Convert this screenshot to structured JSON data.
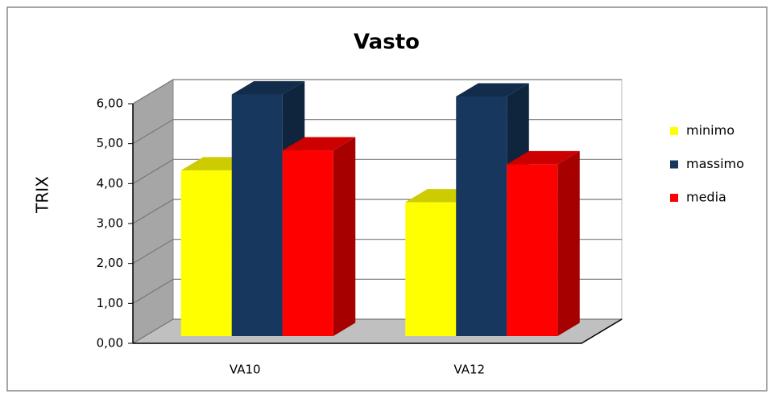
{
  "chart_data": {
    "type": "bar3d",
    "title": "Vasto",
    "y_label": "TRIX",
    "categories": [
      "VA10",
      "VA12"
    ],
    "series": [
      {
        "name": "minimo",
        "color": "#ffff00",
        "values": [
          4.15,
          3.35
        ]
      },
      {
        "name": "massimo",
        "color": "#17375e",
        "values": [
          6.05,
          6.0
        ]
      },
      {
        "name": "media",
        "color": "#ff0000",
        "values": [
          4.65,
          4.3
        ]
      }
    ],
    "ylim": [
      0,
      6
    ],
    "yticks": [
      {
        "value": 0,
        "label": "0,00"
      },
      {
        "value": 1,
        "label": "1,00"
      },
      {
        "value": 2,
        "label": "2,00"
      },
      {
        "value": 3,
        "label": "3,00"
      },
      {
        "value": 4,
        "label": "4,00"
      },
      {
        "value": 5,
        "label": "5,00"
      },
      {
        "value": 6,
        "label": "6,00"
      }
    ],
    "grid": true,
    "legend": "right"
  }
}
